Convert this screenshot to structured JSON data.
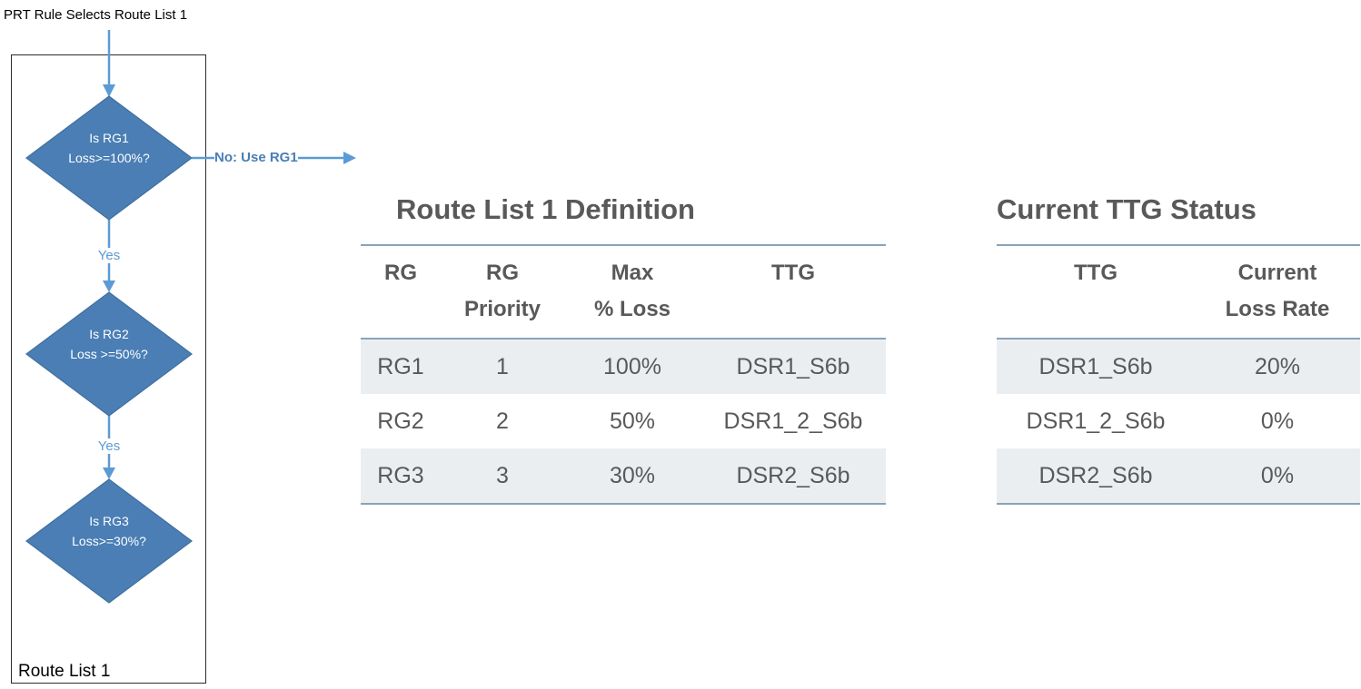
{
  "flowchart": {
    "start_label": "PRT Rule Selects Route List 1",
    "container_label": "Route List 1",
    "decisions": [
      {
        "line1": "Is RG1",
        "line2": "Loss>=100%?"
      },
      {
        "line1": "Is RG2",
        "line2": "Loss >=50%?"
      },
      {
        "line1": "Is RG3",
        "line2": "Loss>=30%?"
      }
    ],
    "yes_labels": [
      "Yes",
      "Yes"
    ],
    "no_label": "No: Use RG1",
    "colors": {
      "diamond_fill": "#4a7eb5",
      "arrow": "#5b9bd5",
      "no_label_text": "#4a7eb5"
    }
  },
  "route_list_table": {
    "title": "Route List 1 Definition",
    "headers": [
      {
        "line1": "RG",
        "line2": ""
      },
      {
        "line1": "RG",
        "line2": "Priority"
      },
      {
        "line1": "Max",
        "line2": "% Loss"
      },
      {
        "line1": "TTG",
        "line2": ""
      }
    ],
    "rows": [
      [
        "RG1",
        "1",
        "100%",
        "DSR1_S6b"
      ],
      [
        "RG2",
        "2",
        "50%",
        "DSR1_2_S6b"
      ],
      [
        "RG3",
        "3",
        "30%",
        "DSR2_S6b"
      ]
    ]
  },
  "ttg_status_table": {
    "title": "Current TTG Status",
    "headers": [
      {
        "line1": "TTG",
        "line2": ""
      },
      {
        "line1": "Current",
        "line2": "Loss Rate"
      }
    ],
    "rows": [
      [
        "DSR1_S6b",
        "20%"
      ],
      [
        "DSR1_2_S6b",
        "0%"
      ],
      [
        "DSR2_S6b",
        "0%"
      ]
    ]
  },
  "colors": {
    "table_text": "#595959",
    "table_rule": "#8aa3b8",
    "row_shade": "#ebeef1"
  }
}
